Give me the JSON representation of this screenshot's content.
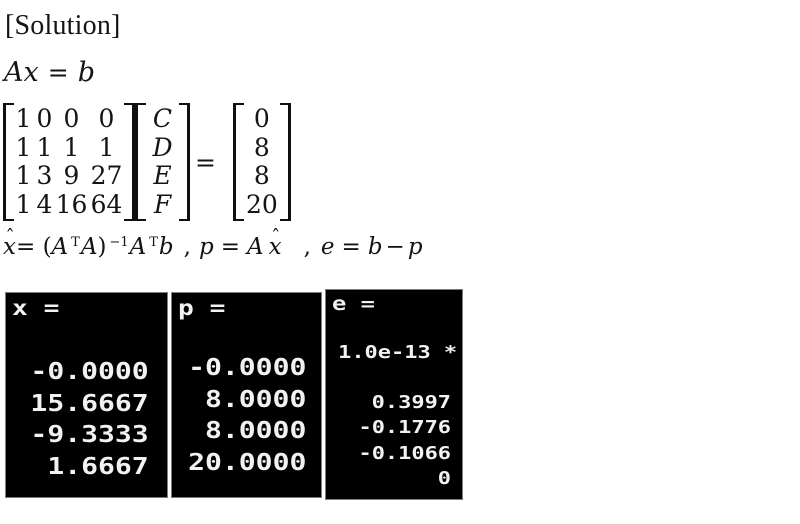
{
  "solution_label": "[Solution]",
  "eq1": {
    "Ax": "Ax",
    "eq": "=",
    "b": "b"
  },
  "matrix_equation": {
    "A_rows": [
      [
        "1",
        "0",
        "0",
        "0"
      ],
      [
        "1",
        "1",
        "1",
        "1"
      ],
      [
        "1",
        "3",
        "9",
        "27"
      ],
      [
        "1",
        "4",
        "16",
        "64"
      ]
    ],
    "x_vector": [
      "C",
      "D",
      "E",
      "F"
    ],
    "equals": "=",
    "b_vector": [
      "0",
      "8",
      "8",
      "20"
    ]
  },
  "formula": {
    "hat": "ˆ",
    "x1": "x",
    "eq_open": "= (",
    "A1": "A",
    "supT1": "T",
    "A2": "A",
    "close_paren": ")",
    "sup_inv": "−1",
    "A3": "A",
    "supT2": "T",
    "b1": "b",
    "comma1": ",",
    "p1": "p",
    "eq2": "=",
    "A4": "A",
    "x2": "x",
    "comma2": ",",
    "e1": "e",
    "eq3": "=",
    "b2": "b",
    "minus": "−",
    "p2": "p"
  },
  "terminal": {
    "bg_color": "#000000",
    "text_color": "#f2f2f2",
    "border_color": "#7d7d7d",
    "panels": [
      {
        "label": "x =",
        "values": [
          "-0.0000",
          "15.6667",
          "-9.3333",
          "1.6667"
        ]
      },
      {
        "label": "p =",
        "values": [
          "-0.0000",
          "8.0000",
          "8.0000",
          "20.0000"
        ]
      },
      {
        "label": "e =",
        "multiplier": "1.0e-13 *",
        "values": [
          "0.3997",
          "-0.1776",
          "-0.1066",
          "0"
        ]
      }
    ]
  }
}
